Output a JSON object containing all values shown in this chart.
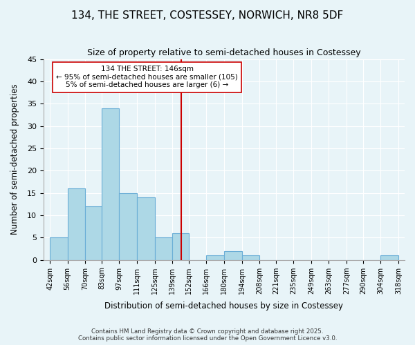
{
  "title1": "134, THE STREET, COSTESSEY, NORWICH, NR8 5DF",
  "title2": "Size of property relative to semi-detached houses in Costessey",
  "xlabel": "Distribution of semi-detached houses by size in Costessey",
  "ylabel": "Number of semi-detached properties",
  "bin_edges": [
    42,
    56,
    70,
    83,
    97,
    111,
    125,
    139,
    152,
    166,
    180,
    194,
    208,
    221,
    235,
    249,
    263,
    277,
    290,
    304,
    318
  ],
  "bar_heights": [
    5,
    16,
    12,
    34,
    15,
    14,
    5,
    6,
    0,
    1,
    2,
    1,
    0,
    0,
    0,
    0,
    0,
    0,
    0,
    1
  ],
  "bar_color": "#add8e6",
  "bar_edge_color": "#6aaed6",
  "vline_x": 146,
  "vline_color": "#cc0000",
  "annotation_title": "134 THE STREET: 146sqm",
  "annotation_line1": "← 95% of semi-detached houses are smaller (105)",
  "annotation_line2": "5% of semi-detached houses are larger (6) →",
  "ylim": [
    0,
    45
  ],
  "yticks": [
    0,
    5,
    10,
    15,
    20,
    25,
    30,
    35,
    40,
    45
  ],
  "bg_color": "#e8f4f8",
  "footer1": "Contains HM Land Registry data © Crown copyright and database right 2025.",
  "footer2": "Contains public sector information licensed under the Open Government Licence v3.0."
}
